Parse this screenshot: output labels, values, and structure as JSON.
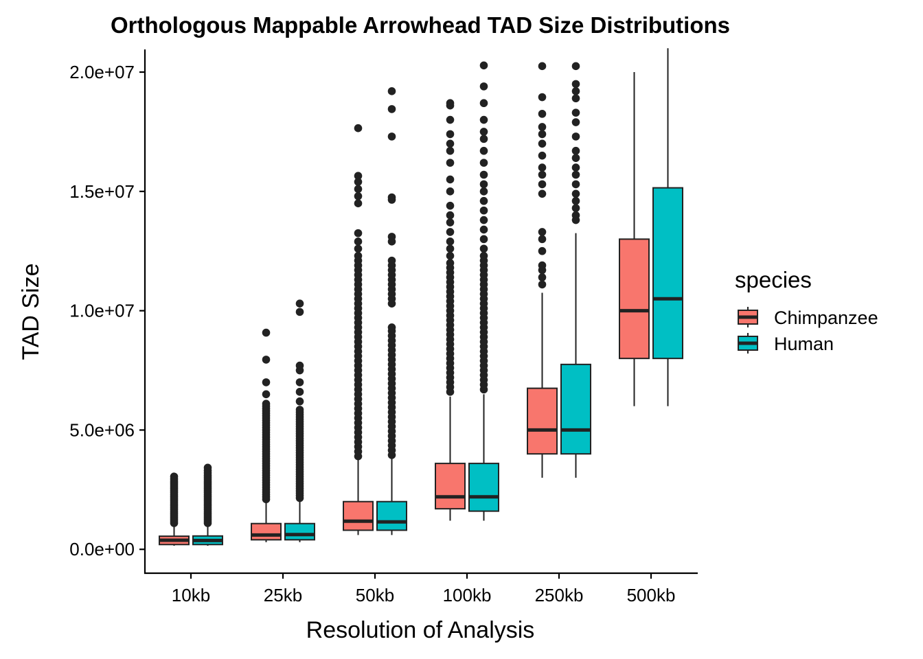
{
  "chart_data": {
    "type": "box",
    "title": "Orthologous Mappable Arrowhead TAD Size Distributions",
    "xlabel": "Resolution of Analysis",
    "ylabel": "TAD Size",
    "ylim": [
      -1000000,
      20950000
    ],
    "yticks": [
      0,
      5000000,
      10000000,
      15000000,
      20000000
    ],
    "ytick_labels": [
      "0.0e+00",
      "5.0e+06",
      "1.0e+07",
      "1.5e+07",
      "2.0e+07"
    ],
    "categories": [
      "10kb",
      "25kb",
      "50kb",
      "100kb",
      "250kb",
      "500kb"
    ],
    "legend": {
      "title": "species",
      "position": "right"
    },
    "series": [
      {
        "name": "Chimpanzee",
        "color": "#F8766D",
        "boxes": [
          {
            "whisker_low": 150000,
            "q1": 200000,
            "median": 380000,
            "q3": 550000,
            "whisker_high": 1000000,
            "outliers": [
              1100000,
              1180000,
              1260000,
              1340000,
              1420000,
              1500000,
              1580000,
              1660000,
              1740000,
              1820000,
              1900000,
              1980000,
              2060000,
              2140000,
              2220000,
              2300000,
              2380000,
              2460000,
              2540000,
              2620000,
              2700000,
              2780000,
              2860000,
              2950000,
              3050000
            ]
          },
          {
            "whisker_low": 300000,
            "q1": 400000,
            "median": 600000,
            "q3": 1080000,
            "whisker_high": 2000000,
            "outliers": [
              2100000,
              2200000,
              2300000,
              2400000,
              2500000,
              2600000,
              2700000,
              2800000,
              2900000,
              3000000,
              3100000,
              3200000,
              3300000,
              3400000,
              3500000,
              3600000,
              3700000,
              3800000,
              3900000,
              4000000,
              4100000,
              4200000,
              4300000,
              4400000,
              4500000,
              4600000,
              4700000,
              4800000,
              4900000,
              5000000,
              5100000,
              5200000,
              5300000,
              5400000,
              5500000,
              5600000,
              5700000,
              5800000,
              5900000,
              6000000,
              6100000,
              6500000,
              7000000,
              7950000,
              9080000
            ]
          },
          {
            "whisker_low": 600000,
            "q1": 800000,
            "median": 1180000,
            "q3": 2000000,
            "whisker_high": 3800000,
            "outliers": [
              3900000,
              4100000,
              4300000,
              4500000,
              4700000,
              4900000,
              5100000,
              5300000,
              5500000,
              5700000,
              5900000,
              6100000,
              6300000,
              6500000,
              6700000,
              6900000,
              7100000,
              7300000,
              7500000,
              7700000,
              7900000,
              8100000,
              8300000,
              8500000,
              8700000,
              8900000,
              9100000,
              9300000,
              9500000,
              9700000,
              9900000,
              10100000,
              10300000,
              10500000,
              10700000,
              10900000,
              11100000,
              11300000,
              11500000,
              11700000,
              11900000,
              12100000,
              12300000,
              12600000,
              12900000,
              13250000,
              14500000,
              14800000,
              15100000,
              15400000,
              15650000,
              17650000
            ]
          },
          {
            "whisker_low": 1200000,
            "q1": 1700000,
            "median": 2200000,
            "q3": 3600000,
            "whisker_high": 6400000,
            "outliers": [
              6600000,
              6800000,
              7000000,
              7200000,
              7400000,
              7600000,
              7800000,
              8000000,
              8200000,
              8400000,
              8600000,
              8800000,
              9000000,
              9200000,
              9400000,
              9600000,
              9800000,
              10000000,
              10200000,
              10400000,
              10600000,
              10800000,
              11000000,
              11200000,
              11400000,
              11600000,
              11800000,
              12000000,
              12300000,
              12600000,
              12900000,
              13300000,
              13700000,
              14000000,
              14400000,
              15000000,
              15500000,
              16200000,
              16700000,
              17000000,
              17400000,
              18000000,
              18600000,
              18700000
            ]
          },
          {
            "whisker_low": 3000000,
            "q1": 4000000,
            "median": 5000000,
            "q3": 6750000,
            "whisker_high": 10750000,
            "outliers": [
              11100000,
              11400000,
              11700000,
              11900000,
              12500000,
              13000000,
              13300000,
              14900000,
              15300000,
              15700000,
              16000000,
              16500000,
              17000000,
              17400000,
              17700000,
              18250000,
              18950000,
              20250000
            ]
          },
          {
            "whisker_low": 6000000,
            "q1": 8000000,
            "median": 10000000,
            "q3": 13000000,
            "whisker_high": 20000000,
            "outliers": []
          }
        ]
      },
      {
        "name": "Human",
        "color": "#00BFC4",
        "boxes": [
          {
            "whisker_low": 150000,
            "q1": 200000,
            "median": 370000,
            "q3": 560000,
            "whisker_high": 1000000,
            "outliers": [
              1100000,
              1180000,
              1260000,
              1340000,
              1420000,
              1500000,
              1580000,
              1660000,
              1740000,
              1820000,
              1900000,
              1980000,
              2060000,
              2140000,
              2220000,
              2300000,
              2380000,
              2460000,
              2540000,
              2620000,
              2700000,
              2780000,
              2860000,
              2940000,
              3020000,
              3100000,
              3200000,
              3300000,
              3420000
            ]
          },
          {
            "whisker_low": 300000,
            "q1": 400000,
            "median": 620000,
            "q3": 1080000,
            "whisker_high": 2050000,
            "outliers": [
              2150000,
              2250000,
              2350000,
              2450000,
              2550000,
              2650000,
              2750000,
              2850000,
              2950000,
              3050000,
              3150000,
              3250000,
              3350000,
              3450000,
              3550000,
              3650000,
              3750000,
              3850000,
              3950000,
              4050000,
              4150000,
              4250000,
              4350000,
              4450000,
              4550000,
              4650000,
              4750000,
              4850000,
              4950000,
              5050000,
              5150000,
              5250000,
              5350000,
              5450000,
              5550000,
              5650000,
              5750000,
              5850000,
              6200000,
              6600000,
              7000000,
              7500000,
              7700000,
              9950000,
              10300000
            ]
          },
          {
            "whisker_low": 600000,
            "q1": 800000,
            "median": 1150000,
            "q3": 2000000,
            "whisker_high": 3850000,
            "outliers": [
              3950000,
              4150000,
              4350000,
              4550000,
              4750000,
              4950000,
              5150000,
              5350000,
              5550000,
              5750000,
              5950000,
              6150000,
              6350000,
              6550000,
              6750000,
              6950000,
              7150000,
              7350000,
              7550000,
              7750000,
              7950000,
              8150000,
              8350000,
              8550000,
              8750000,
              8950000,
              9150000,
              9300000,
              10300000,
              10500000,
              10700000,
              10900000,
              11100000,
              11300000,
              11500000,
              11700000,
              11900000,
              12100000,
              12900000,
              13100000,
              14650000,
              14750000,
              17300000,
              18450000,
              19200000
            ]
          },
          {
            "whisker_low": 1200000,
            "q1": 1600000,
            "median": 2200000,
            "q3": 3600000,
            "whisker_high": 6500000,
            "outliers": [
              6700000,
              6900000,
              7100000,
              7300000,
              7500000,
              7700000,
              7900000,
              8100000,
              8300000,
              8500000,
              8700000,
              8900000,
              9100000,
              9300000,
              9500000,
              9700000,
              9900000,
              10100000,
              10300000,
              10500000,
              10700000,
              10900000,
              11100000,
              11300000,
              11500000,
              11700000,
              11900000,
              12100000,
              12300000,
              12600000,
              13000000,
              13400000,
              13800000,
              14200000,
              14600000,
              15000000,
              15300000,
              15700000,
              16200000,
              16700000,
              17200000,
              17500000,
              18000000,
              18700000,
              19400000,
              20280000
            ]
          },
          {
            "whisker_low": 3000000,
            "q1": 4000000,
            "median": 5000000,
            "q3": 7750000,
            "whisker_high": 13250000,
            "outliers": [
              13800000,
              14000000,
              14300000,
              14600000,
              14900000,
              15300000,
              15700000,
              16000000,
              16400000,
              16700000,
              17300000,
              17900000,
              18300000,
              18900000,
              19200000,
              19500000,
              20250000
            ]
          },
          {
            "whisker_low": 6000000,
            "q1": 8000000,
            "median": 10500000,
            "q3": 15150000,
            "whisker_high": 21000000,
            "outliers": []
          }
        ]
      }
    ]
  }
}
